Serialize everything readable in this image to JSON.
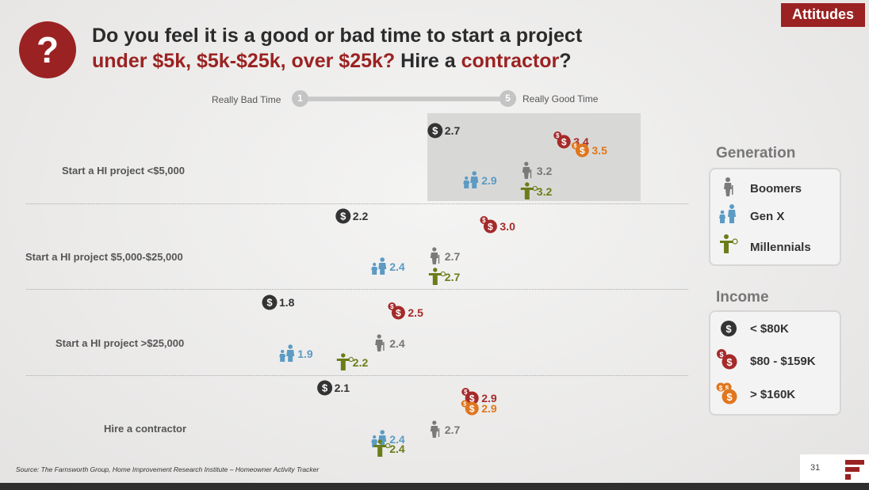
{
  "header": {
    "tag": "Attitudes",
    "question_icon": "?",
    "title_line1": "Do you feel it is a good or bad time to start a project",
    "title_line2_parts": [
      "under $5k, $5k-$25k, over $25k?",
      " Hire a ",
      "contractor",
      "?"
    ]
  },
  "scale": {
    "low_label": "Really Bad Time",
    "high_label": "Really Good Time",
    "low_value": "1",
    "high_value": "5"
  },
  "legend": {
    "generation_title": "Generation",
    "generation_items": [
      "Boomers",
      "Gen X",
      "Millennials"
    ],
    "income_title": "Income",
    "income_items": [
      "< $80K",
      "$80 - $159K",
      "> $160K"
    ]
  },
  "colors": {
    "brand_red": "#9b2222",
    "income_low": "#333333",
    "income_mid": "#a52a2a",
    "income_high": "#e0761d",
    "boomers": "#7a7a7a",
    "genx": "#5b9bc4",
    "millennials": "#6b7d19"
  },
  "chart_data": {
    "type": "scatter",
    "title": "Do you feel it is a good or bad time to start a project under $5k, $5k-$25k, over $25k? Hire a contractor?",
    "xlabel": "Really Bad Time (1) to Really Good Time (5)",
    "xlim": [
      1,
      5
    ],
    "categories": [
      "Start a HI project <$5,000",
      "Start a HI project $5,000-$25,000",
      "Start a HI project >$25,000",
      "Hire a contractor"
    ],
    "series": [
      {
        "name": "< $80K",
        "group": "Income",
        "values": [
          2.7,
          2.2,
          1.8,
          2.1
        ]
      },
      {
        "name": "$80 - $159K",
        "group": "Income",
        "values": [
          3.4,
          3.0,
          2.5,
          2.9
        ]
      },
      {
        "name": "> $160K",
        "group": "Income",
        "values": [
          3.5,
          null,
          null,
          2.9
        ]
      },
      {
        "name": "Boomers",
        "group": "Generation",
        "values": [
          3.2,
          2.7,
          2.4,
          2.7
        ]
      },
      {
        "name": "Gen X",
        "group": "Generation",
        "values": [
          2.9,
          2.4,
          1.9,
          2.4
        ]
      },
      {
        "name": "Millennials",
        "group": "Generation",
        "values": [
          3.2,
          2.7,
          2.2,
          2.4
        ]
      }
    ]
  },
  "footer": {
    "source": "Source: The Farnsworth Group, Home Improvement Research Institute – Homeowner Activity Tracker",
    "page_number": "31",
    "logo_icon": "farnsworth-logo"
  }
}
